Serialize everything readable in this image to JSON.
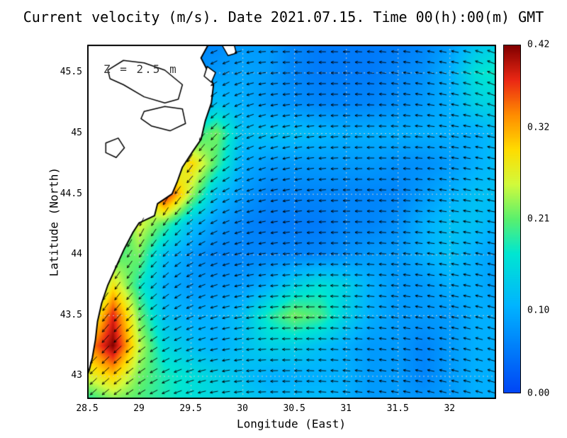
{
  "chart_data": {
    "type": "heatmap",
    "title": "Current velocity (m/s). Date 2021.07.15. Time 00(h):00(m) GMT",
    "xlabel": "Longitude (East)",
    "ylabel": "Latitude (North)",
    "annotation": "Z = 2.5 m",
    "units": "m/s",
    "grid": true,
    "x_range": [
      28.5,
      32.45
    ],
    "y_range": [
      42.81,
      45.73
    ],
    "x_ticks": [
      28.5,
      29,
      29.5,
      30,
      30.5,
      31,
      31.5,
      32
    ],
    "x_tick_labels": [
      "28.5",
      "29",
      "29.5",
      "30",
      "30.5",
      "31",
      "31.5",
      "32"
    ],
    "y_ticks": [
      43,
      43.5,
      44,
      44.5,
      45,
      45.5
    ],
    "y_tick_labels": [
      "43",
      "43.5",
      "44",
      "44.5",
      "45",
      "45.5"
    ],
    "colorbar": {
      "min": 0.0,
      "max": 0.42,
      "ticks": [
        0.0,
        0.1,
        0.21,
        0.32,
        0.42
      ],
      "tick_labels": [
        "0.00",
        "0.10",
        "0.21",
        "0.32",
        "0.42"
      ],
      "position": "right"
    },
    "colormap": [
      [
        0.0,
        "#0046f5"
      ],
      [
        0.25,
        "#00b4ff"
      ],
      [
        0.4,
        "#00e6d2"
      ],
      [
        0.5,
        "#5af06e"
      ],
      [
        0.6,
        "#d2fa3c"
      ],
      [
        0.7,
        "#ffdc00"
      ],
      [
        0.8,
        "#ff8c00"
      ],
      [
        0.9,
        "#eb2814"
      ],
      [
        1.0,
        "#820000"
      ]
    ],
    "land_color": "#ffffff",
    "coast_color": "#000000",
    "grid_color": "#c8c8c8",
    "arrow_color": "#000000",
    "field": {
      "lon": [
        28.5,
        28.75,
        29.0,
        29.25,
        29.5,
        29.75,
        30.0,
        30.25,
        30.5,
        30.75,
        31.0,
        31.25,
        31.5,
        31.75,
        32.0,
        32.25,
        32.5
      ],
      "lat": [
        45.75,
        45.5,
        45.25,
        45.0,
        44.75,
        44.5,
        44.25,
        44.0,
        43.75,
        43.5,
        43.25,
        43.0,
        42.75
      ],
      "speed": [
        [
          0.05,
          0.05,
          0.05,
          0.05,
          0.06,
          0.06,
          0.08,
          0.08,
          0.06,
          0.05,
          0.05,
          0.05,
          0.05,
          0.06,
          0.08,
          0.12,
          0.14
        ],
        [
          0.05,
          0.05,
          0.05,
          0.05,
          0.07,
          0.08,
          0.09,
          0.08,
          0.06,
          0.05,
          0.05,
          0.05,
          0.06,
          0.07,
          0.1,
          0.16,
          0.18
        ],
        [
          0.05,
          0.05,
          0.05,
          0.06,
          0.08,
          0.12,
          0.1,
          0.08,
          0.07,
          0.06,
          0.06,
          0.06,
          0.07,
          0.08,
          0.1,
          0.14,
          0.15
        ],
        [
          0.06,
          0.08,
          0.1,
          0.12,
          0.18,
          0.22,
          0.12,
          0.12,
          0.12,
          0.11,
          0.1,
          0.1,
          0.1,
          0.1,
          0.1,
          0.1,
          0.12
        ],
        [
          0.08,
          0.1,
          0.12,
          0.18,
          0.3,
          0.2,
          0.1,
          0.08,
          0.08,
          0.08,
          0.08,
          0.08,
          0.07,
          0.07,
          0.08,
          0.1,
          0.12
        ],
        [
          0.1,
          0.12,
          0.18,
          0.4,
          0.24,
          0.12,
          0.08,
          0.06,
          0.06,
          0.06,
          0.06,
          0.06,
          0.06,
          0.08,
          0.1,
          0.12,
          0.12
        ],
        [
          0.1,
          0.14,
          0.26,
          0.2,
          0.12,
          0.08,
          0.06,
          0.05,
          0.05,
          0.05,
          0.06,
          0.06,
          0.07,
          0.1,
          0.12,
          0.12,
          0.1
        ],
        [
          0.08,
          0.2,
          0.22,
          0.12,
          0.08,
          0.06,
          0.06,
          0.06,
          0.06,
          0.06,
          0.07,
          0.08,
          0.08,
          0.1,
          0.12,
          0.1,
          0.08
        ],
        [
          0.12,
          0.28,
          0.18,
          0.1,
          0.08,
          0.08,
          0.08,
          0.1,
          0.14,
          0.16,
          0.14,
          0.1,
          0.08,
          0.08,
          0.1,
          0.1,
          0.08
        ],
        [
          0.22,
          0.38,
          0.22,
          0.12,
          0.1,
          0.1,
          0.12,
          0.18,
          0.22,
          0.2,
          0.14,
          0.1,
          0.08,
          0.08,
          0.08,
          0.1,
          0.1
        ],
        [
          0.32,
          0.42,
          0.25,
          0.15,
          0.12,
          0.1,
          0.12,
          0.14,
          0.14,
          0.12,
          0.1,
          0.08,
          0.08,
          0.06,
          0.08,
          0.1,
          0.1
        ],
        [
          0.26,
          0.3,
          0.22,
          0.18,
          0.16,
          0.14,
          0.12,
          0.1,
          0.1,
          0.1,
          0.1,
          0.08,
          0.08,
          0.06,
          0.08,
          0.1,
          0.1
        ],
        [
          0.16,
          0.2,
          0.2,
          0.18,
          0.16,
          0.15,
          0.14,
          0.12,
          0.12,
          0.12,
          0.1,
          0.08,
          0.08,
          0.08,
          0.08,
          0.1,
          0.1
        ]
      ],
      "direction_deg": [
        [
          200,
          200,
          200,
          200,
          200,
          200,
          190,
          180,
          180,
          180,
          180,
          175,
          175,
          170,
          170,
          165,
          160
        ],
        [
          210,
          210,
          210,
          210,
          210,
          210,
          195,
          185,
          180,
          180,
          178,
          175,
          172,
          170,
          168,
          160,
          155
        ],
        [
          230,
          230,
          230,
          230,
          230,
          215,
          200,
          190,
          185,
          182,
          180,
          178,
          175,
          172,
          170,
          165,
          160
        ],
        [
          240,
          240,
          240,
          240,
          240,
          225,
          205,
          195,
          190,
          185,
          182,
          180,
          178,
          175,
          172,
          170,
          168
        ],
        [
          250,
          250,
          250,
          245,
          235,
          220,
          205,
          195,
          190,
          185,
          182,
          180,
          178,
          175,
          172,
          170,
          168
        ],
        [
          255,
          255,
          250,
          240,
          225,
          210,
          200,
          192,
          188,
          184,
          181,
          179,
          177,
          174,
          172,
          170,
          168
        ],
        [
          250,
          250,
          245,
          235,
          220,
          205,
          196,
          190,
          186,
          183,
          180,
          178,
          176,
          174,
          172,
          170,
          168
        ],
        [
          245,
          240,
          235,
          225,
          210,
          200,
          193,
          188,
          184,
          181,
          179,
          177,
          175,
          173,
          171,
          169,
          167
        ],
        [
          240,
          235,
          228,
          218,
          206,
          197,
          191,
          186,
          183,
          180,
          178,
          176,
          174,
          172,
          170,
          168,
          166
        ],
        [
          235,
          230,
          222,
          212,
          202,
          194,
          189,
          185,
          182,
          179,
          177,
          175,
          173,
          171,
          169,
          167,
          165
        ],
        [
          230,
          225,
          218,
          208,
          199,
          192,
          187,
          183,
          180,
          178,
          176,
          174,
          172,
          170,
          168,
          166,
          164
        ],
        [
          225,
          220,
          214,
          205,
          197,
          190,
          185,
          182,
          179,
          177,
          175,
          173,
          171,
          169,
          167,
          165,
          163
        ],
        [
          220,
          216,
          210,
          202,
          195,
          189,
          184,
          181,
          178,
          176,
          174,
          172,
          170,
          168,
          166,
          164,
          162
        ]
      ]
    },
    "coastline": [
      [
        29.67,
        45.73
      ],
      [
        29.6,
        45.62
      ],
      [
        29.66,
        45.52
      ],
      [
        29.72,
        45.4
      ],
      [
        29.7,
        45.25
      ],
      [
        29.64,
        45.1
      ],
      [
        29.6,
        44.95
      ],
      [
        29.52,
        44.85
      ],
      [
        29.42,
        44.72
      ],
      [
        29.37,
        44.6
      ],
      [
        29.32,
        44.5
      ],
      [
        29.18,
        44.42
      ],
      [
        29.15,
        44.32
      ],
      [
        29.0,
        44.26
      ],
      [
        28.94,
        44.18
      ],
      [
        28.86,
        44.05
      ],
      [
        28.78,
        43.9
      ],
      [
        28.7,
        43.75
      ],
      [
        28.64,
        43.6
      ],
      [
        28.6,
        43.45
      ],
      [
        28.58,
        43.3
      ],
      [
        28.55,
        43.15
      ],
      [
        28.52,
        43.05
      ],
      [
        28.5,
        43.0
      ]
    ],
    "lakes": [
      [
        [
          28.7,
          45.52
        ],
        [
          28.85,
          45.6
        ],
        [
          29.05,
          45.58
        ],
        [
          29.25,
          45.52
        ],
        [
          29.42,
          45.4
        ],
        [
          29.38,
          45.28
        ],
        [
          29.25,
          45.25
        ],
        [
          29.05,
          45.3
        ],
        [
          28.85,
          45.4
        ],
        [
          28.72,
          45.45
        ]
      ],
      [
        [
          29.05,
          45.18
        ],
        [
          29.25,
          45.22
        ],
        [
          29.42,
          45.2
        ],
        [
          29.45,
          45.08
        ],
        [
          29.3,
          45.02
        ],
        [
          29.12,
          45.06
        ],
        [
          29.02,
          45.12
        ]
      ],
      [
        [
          28.68,
          44.92
        ],
        [
          28.8,
          44.96
        ],
        [
          28.86,
          44.88
        ],
        [
          28.78,
          44.8
        ],
        [
          28.68,
          44.84
        ]
      ]
    ],
    "islands": [
      [
        [
          29.8,
          45.73
        ],
        [
          29.86,
          45.64
        ],
        [
          29.94,
          45.66
        ],
        [
          29.92,
          45.73
        ]
      ],
      [
        [
          29.66,
          45.55
        ],
        [
          29.74,
          45.5
        ],
        [
          29.7,
          45.42
        ],
        [
          29.63,
          45.47
        ]
      ]
    ]
  }
}
